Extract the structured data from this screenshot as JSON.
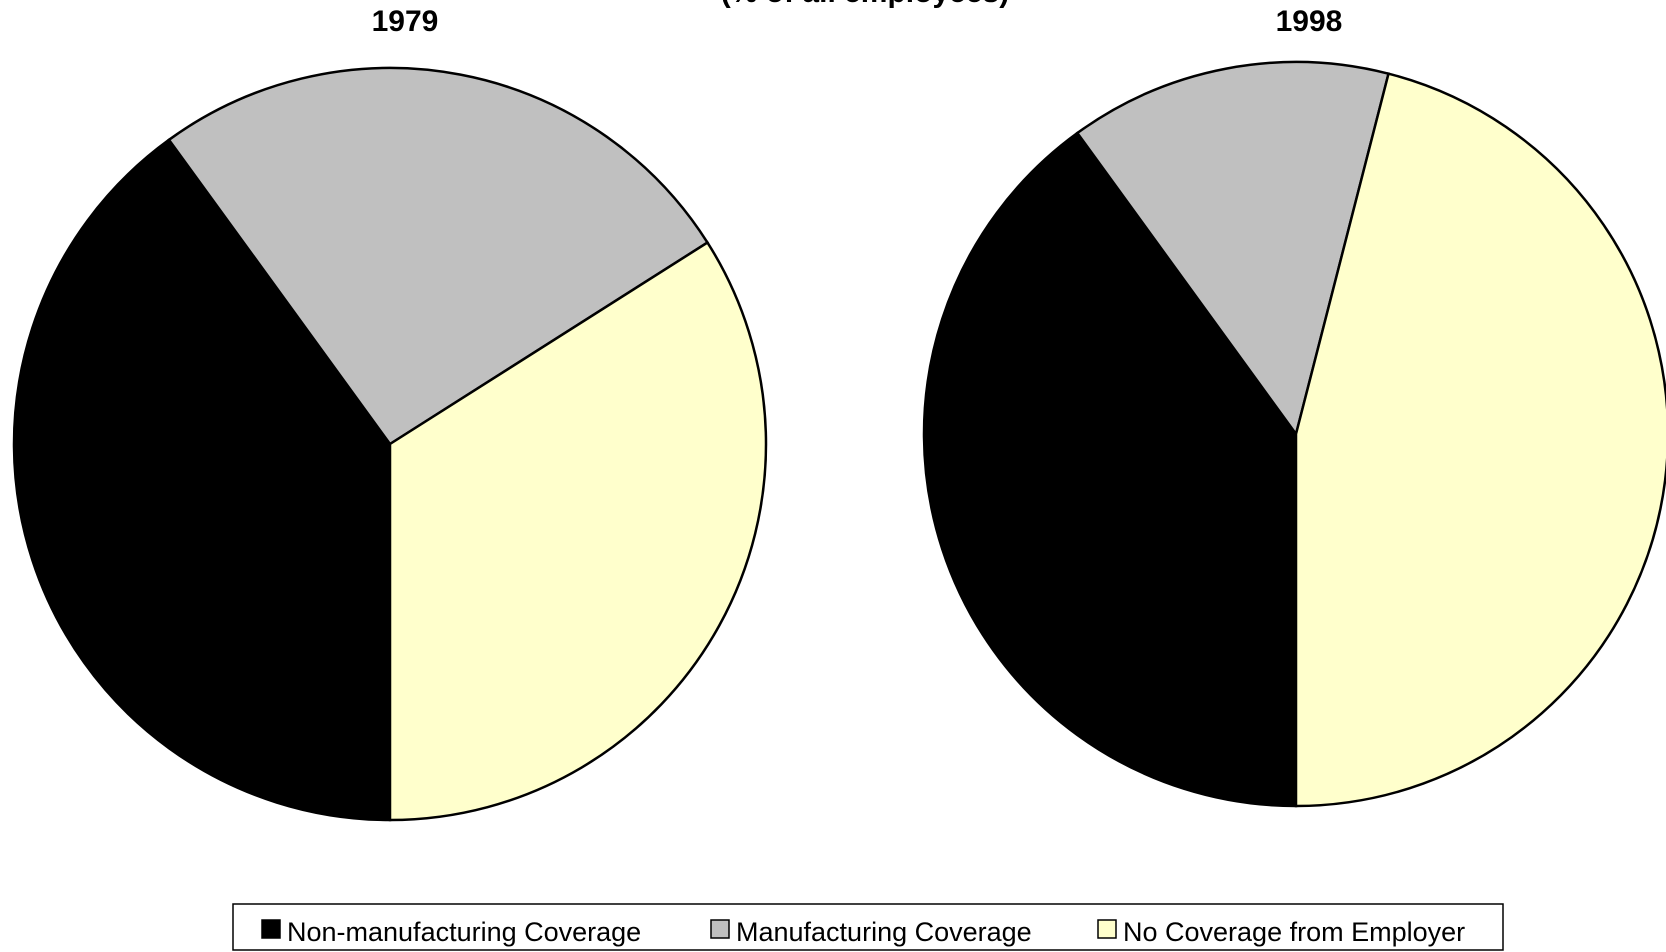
{
  "chart_data": [
    {
      "type": "pie",
      "title": "1979",
      "categories": [
        "Non-manufacturing Coverage",
        "Manufacturing Coverage",
        "No Coverage from Employer"
      ],
      "values": [
        40,
        26,
        34
      ],
      "colors": [
        "#000000",
        "#c0c0c0",
        "#ffffcc"
      ]
    },
    {
      "type": "pie",
      "title": "1998",
      "categories": [
        "Non-manufacturing Coverage",
        "Manufacturing Coverage",
        "No Coverage from Employer"
      ],
      "values": [
        40,
        14,
        46
      ],
      "colors": [
        "#000000",
        "#c0c0c0",
        "#ffffcc"
      ]
    }
  ],
  "title": "(% of all employees)",
  "legend": {
    "position": "bottom"
  }
}
